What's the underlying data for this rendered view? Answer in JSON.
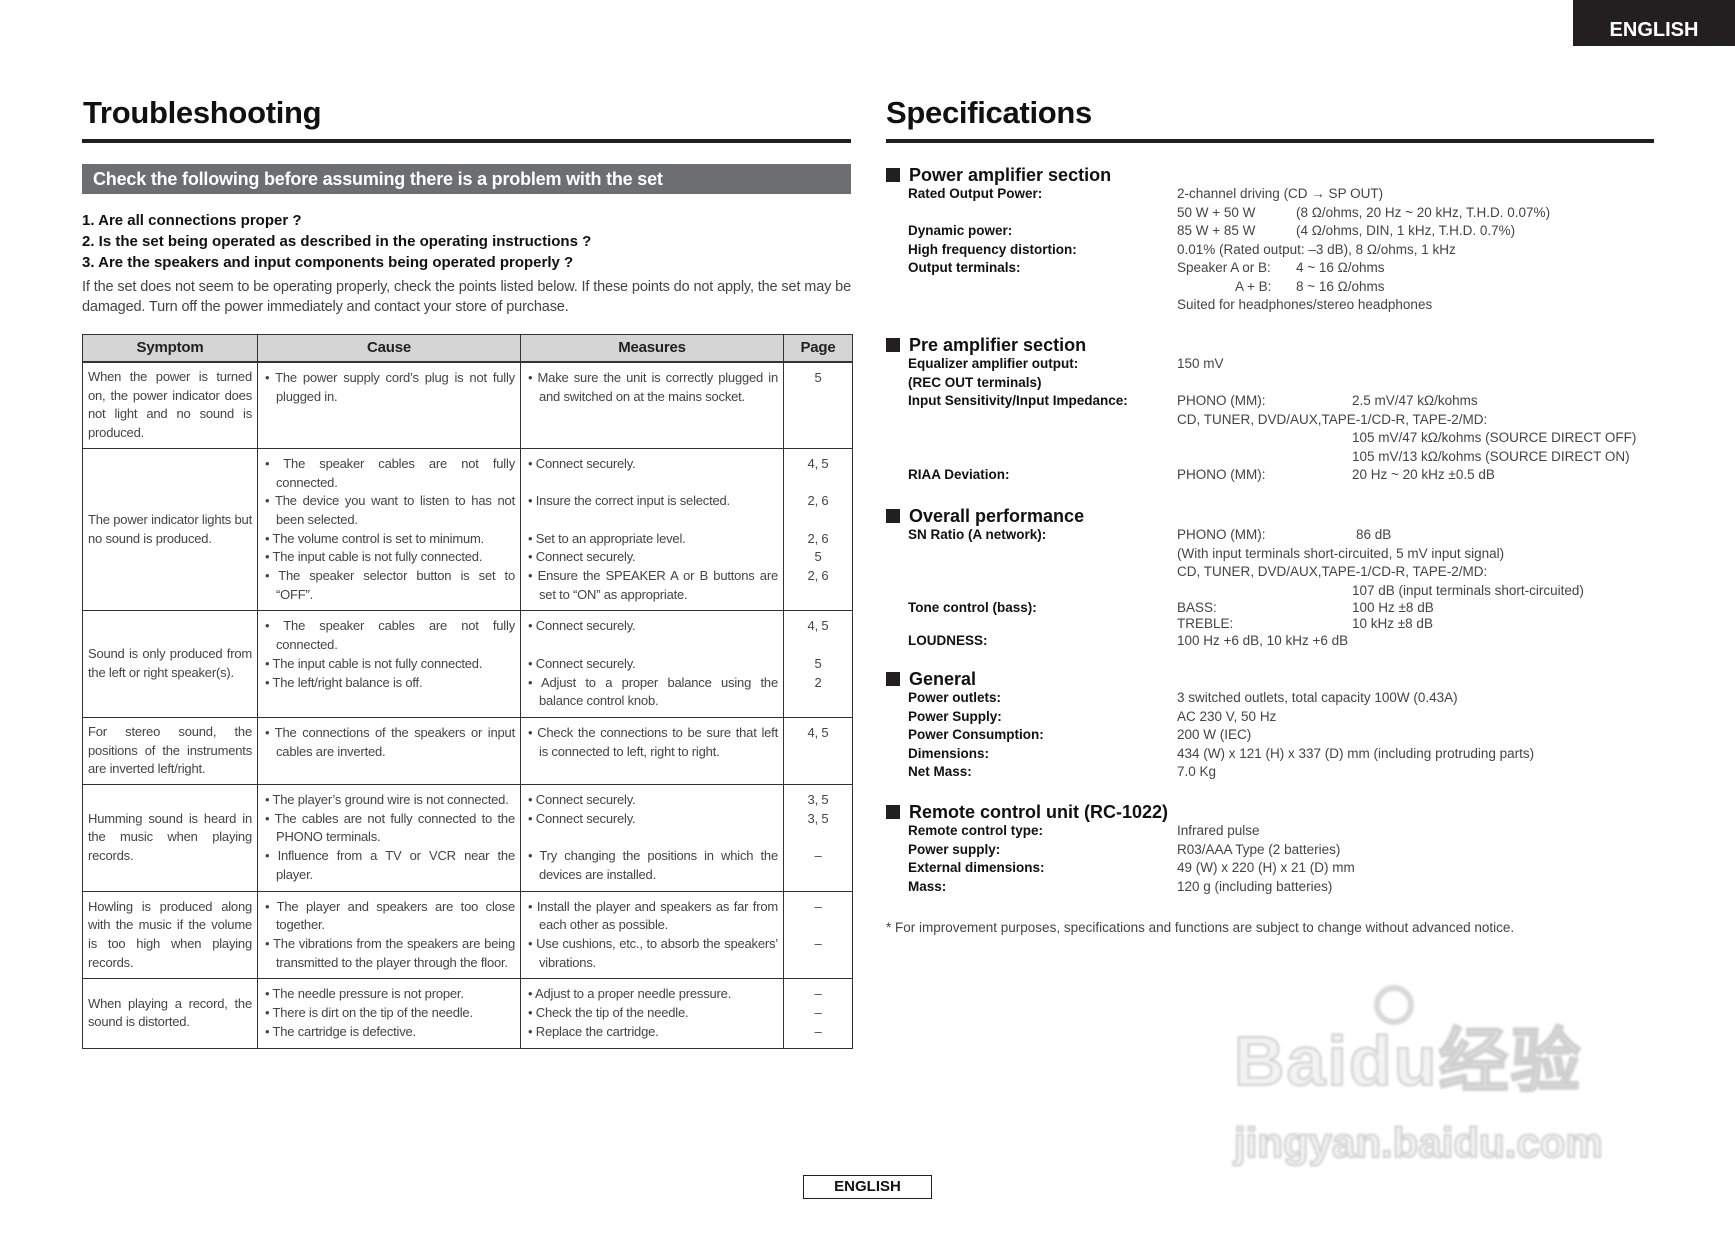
{
  "language_tab": "ENGLISH",
  "footer_language": "ENGLISH",
  "troubleshooting": {
    "title": "Troubleshooting",
    "check_bar": "Check the following before assuming there is a problem with the set",
    "checklist": [
      "1.  Are all connections proper ?",
      "2.  Is the set being operated as described in the operating instructions ?",
      "3.  Are the speakers and input components being operated properly ?"
    ],
    "intro": "If the set does not seem to be operating properly, check the points listed below. If these points do not apply, the set may be damaged. Turn off the power immediately and contact your store of purchase.",
    "headers": [
      "Symptom",
      "Cause",
      "Measures",
      "Page"
    ],
    "rows": [
      {
        "symptom": "When the power is turned on, the power indicator does not light and no sound is produced.",
        "items": [
          {
            "cause": "• The power supply cord’s plug is not fully plugged in.",
            "measure": "• Make sure the unit is correctly plugged in and switched on at the mains socket.",
            "page": "5"
          }
        ]
      },
      {
        "symptom": "The power indicator lights but no sound is produced.",
        "items": [
          {
            "cause": "• The speaker cables are not fully connected.",
            "measure": "• Connect securely.",
            "page": "4, 5"
          },
          {
            "cause": "• The device you want to listen to has not been selected.",
            "measure": "• Insure the correct input is selected.",
            "page": "2, 6"
          },
          {
            "cause": "• The volume control is set to minimum.",
            "measure": "• Set to an appropriate level.",
            "page": "2, 6"
          },
          {
            "cause": "• The input cable is not fully connected.",
            "measure": "• Connect securely.",
            "page": "5"
          },
          {
            "cause": "• The speaker selector button is set to “OFF”.",
            "measure": "• Ensure the SPEAKER A or B buttons are set to “ON” as appropriate.",
            "page": "2, 6"
          }
        ]
      },
      {
        "symptom": "Sound is only produced from the left or right speaker(s).",
        "items": [
          {
            "cause": "• The speaker cables are not fully connected.",
            "measure": "• Connect securely.",
            "page": "4, 5"
          },
          {
            "cause": "• The input cable is not fully connected.",
            "measure": "• Connect securely.",
            "page": "5"
          },
          {
            "cause": "• The left/right balance is off.",
            "measure": "• Adjust to a proper balance using the balance control knob.",
            "page": "2"
          }
        ]
      },
      {
        "symptom": "For stereo sound, the positions of the instruments are inverted left/right.",
        "items": [
          {
            "cause": "• The connections of the speakers or input cables are inverted.",
            "measure": "• Check the connections to be sure that left is connected to left, right to right.",
            "page": "4, 5"
          }
        ]
      },
      {
        "symptom": "Humming sound is heard in the music when playing records.",
        "items": [
          {
            "cause": "• The player’s ground wire is not connected.",
            "measure": "• Connect securely.",
            "page": "3, 5"
          },
          {
            "cause": "• The cables are not fully connected to the PHONO terminals.",
            "measure": "• Connect securely.",
            "page": "3, 5"
          },
          {
            "cause": "• Influence from a TV or VCR near the player.",
            "measure": "• Try changing the positions in which the devices are installed.",
            "page": "–"
          }
        ]
      },
      {
        "symptom": "Howling is produced along with the music if the volume is too high when playing records.",
        "items": [
          {
            "cause": "• The player and speakers are too close together.",
            "measure": "• Install the player and speakers as far from each other as possible.",
            "page": "–"
          },
          {
            "cause": "• The vibrations from the speakers are being transmitted to the player through the floor.",
            "measure": "• Use cushions, etc., to absorb the speakers’ vibrations.",
            "page": "–"
          }
        ]
      },
      {
        "symptom": "When playing a record, the sound is distorted.",
        "items": [
          {
            "cause": "• The needle pressure is not proper.",
            "measure": "• Adjust to a proper needle pressure.",
            "page": "–"
          },
          {
            "cause": "• There is dirt on the tip of the needle.",
            "measure": "• Check the tip of the needle.",
            "page": "–"
          },
          {
            "cause": "• The cartridge is defective.",
            "measure": "• Replace the cartridge.",
            "page": "–"
          }
        ]
      }
    ]
  },
  "specifications": {
    "title": "Specifications",
    "power_amp": {
      "heading": "Power amplifier section",
      "rated_label": "Rated Output Power:",
      "rated_1": "2-channel driving (CD → SP OUT)",
      "rated_2a": "50 W + 50 W",
      "rated_2b": "(8 Ω/ohms, 20 Hz ~ 20 kHz, T.H.D. 0.07%)",
      "dynamic_label": "Dynamic power:",
      "dynamic_a": "85 W + 85 W",
      "dynamic_b": "(4 Ω/ohms, DIN, 1 kHz, T.H.D. 0.7%)",
      "hfd_label": "High frequency distortion:",
      "hfd_value": "0.01% (Rated output: –3 dB), 8 Ω/ohms, 1 kHz",
      "output_label": "Output terminals:",
      "output_1a": "Speaker A or B:",
      "output_1b": "4 ~ 16 Ω/ohms",
      "output_2a": "A + B:",
      "output_2b": "8 ~ 16 Ω/ohms",
      "output_3": "Suited for headphones/stereo headphones"
    },
    "pre_amp": {
      "heading": "Pre amplifier section",
      "eq_label": "Equalizer amplifier output:",
      "eq_label_2": "(REC OUT terminals)",
      "eq_value": "150 mV",
      "input_label": "Input Sensitivity/Input Impedance:",
      "input_1a": "PHONO (MM):",
      "input_1b": "2.5 mV/47 kΩ/kohms",
      "input_2": "CD, TUNER, DVD/AUX,TAPE-1/CD-R, TAPE-2/MD:",
      "input_3": "105 mV/47 kΩ/kohms (SOURCE DIRECT OFF)",
      "input_4": "105 mV/13 kΩ/kohms (SOURCE DIRECT ON)",
      "riaa_label": "RIAA Deviation:",
      "riaa_a": "PHONO (MM):",
      "riaa_b": "20 Hz ~ 20 kHz ±0.5 dB"
    },
    "overall": {
      "heading": "Overall performance",
      "sn_label": "SN Ratio (A network):",
      "sn_1a": "PHONO (MM):",
      "sn_1b": "86 dB",
      "sn_2": "(With input terminals short-circuited, 5 mV input signal)",
      "sn_3": "CD, TUNER, DVD/AUX,TAPE-1/CD-R, TAPE-2/MD:",
      "sn_4": "107 dB (input terminals short-circuited)",
      "tone_label": "Tone control (bass):",
      "tone_1a": "BASS:",
      "tone_1b": "100 Hz ±8 dB",
      "tone_2a": "TREBLE:",
      "tone_2b": "10 kHz ±8 dB",
      "loud_label": "LOUDNESS:",
      "loud_value": "100 Hz +6 dB, 10 kHz +6 dB"
    },
    "general": {
      "heading": "General",
      "rows": [
        {
          "label": "Power outlets:",
          "value": "3 switched outlets, total capacity 100W (0.43A)"
        },
        {
          "label": "Power Supply:",
          "value": "AC 230 V, 50 Hz"
        },
        {
          "label": "Power Consumption:",
          "value": "200 W (IEC)"
        },
        {
          "label": "Dimensions:",
          "value": "434 (W) x 121 (H) x 337 (D) mm (including protruding parts)"
        },
        {
          "label": "Net Mass:",
          "value": "7.0 Kg"
        }
      ]
    },
    "remote": {
      "heading": "Remote control unit (RC-1022)",
      "rows": [
        {
          "label": "Remote control type:",
          "value": "Infrared pulse"
        },
        {
          "label": "Power supply:",
          "value": "R03/AAA Type (2 batteries)"
        },
        {
          "label": "External dimensions:",
          "value": "49 (W) x 220 (H) x 21 (D) mm"
        },
        {
          "label": "Mass:",
          "value": "120 g (including batteries)"
        }
      ]
    },
    "footnote": "* For improvement purposes, specifications and functions are subject to change without advanced notice."
  },
  "watermark": {
    "main": "Baidu经验",
    "sub": "jingyan.baidu.com"
  }
}
